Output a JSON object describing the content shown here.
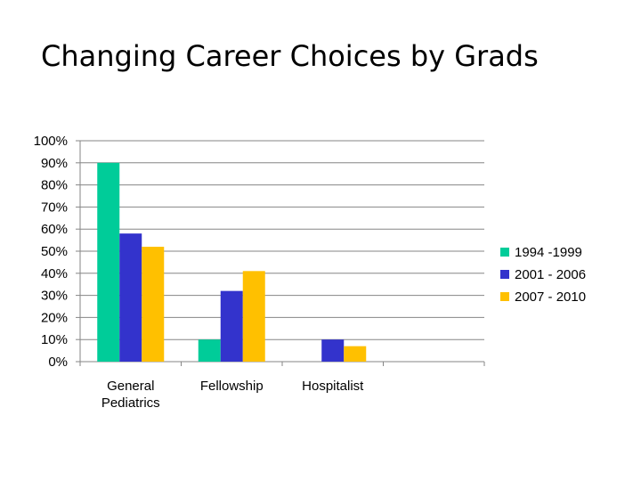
{
  "slide": {
    "title": "Changing Career Choices by Grads"
  },
  "chart_data": {
    "type": "bar",
    "categories": [
      [
        "General",
        "Pediatrics"
      ],
      [
        "Fellowship"
      ],
      [
        "Hospitalist"
      ],
      []
    ],
    "series": [
      {
        "name": "1994 -1999",
        "color": "#00CC99",
        "values": [
          90,
          10,
          null,
          null
        ]
      },
      {
        "name": "2001 - 2006",
        "color": "#3333CC",
        "values": [
          58,
          32,
          10,
          null
        ]
      },
      {
        "name": "2007 - 2010",
        "color": "#FFC000",
        "values": [
          52,
          41,
          7,
          null
        ]
      }
    ],
    "ylim": [
      0,
      100
    ],
    "y_ticks": [
      0,
      10,
      20,
      30,
      40,
      50,
      60,
      70,
      80,
      90,
      100
    ],
    "y_tick_suffix": "%",
    "grid": true,
    "legend_position": "right"
  }
}
